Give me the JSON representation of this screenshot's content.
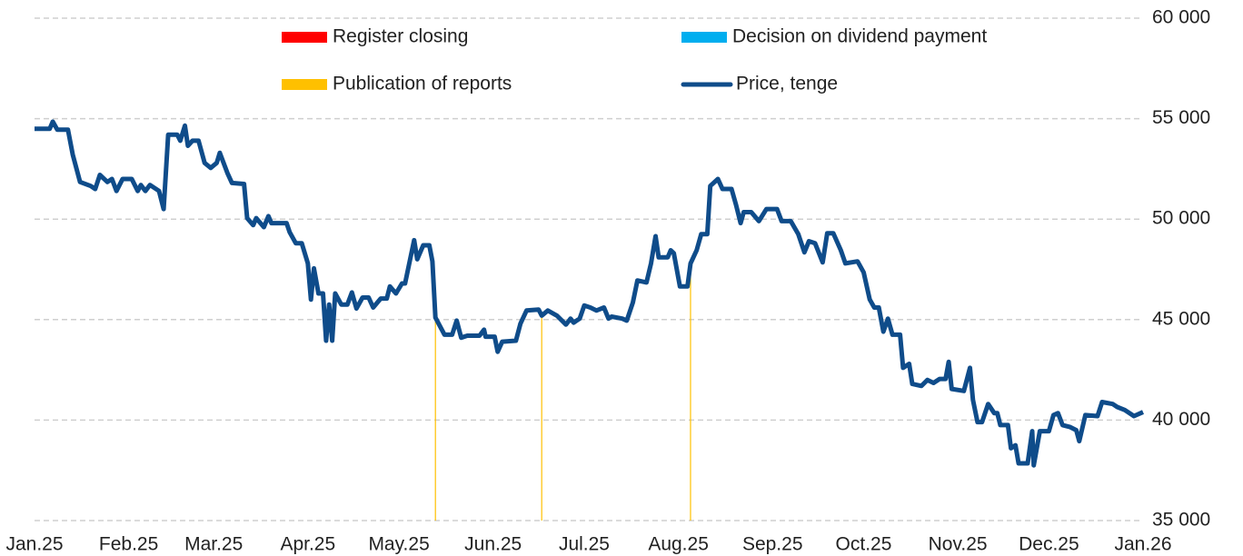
{
  "chart_data": {
    "type": "line",
    "xlim": [
      0,
      365
    ],
    "xticks": [
      {
        "value": 0,
        "label": "Jan.25"
      },
      {
        "value": 31,
        "label": "Feb.25"
      },
      {
        "value": 59,
        "label": "Mar.25"
      },
      {
        "value": 90,
        "label": "Apr.25"
      },
      {
        "value": 120,
        "label": "May.25"
      },
      {
        "value": 151,
        "label": "Jun.25"
      },
      {
        "value": 181,
        "label": "Jul.25"
      },
      {
        "value": 212,
        "label": "Aug.25"
      },
      {
        "value": 243,
        "label": "Sep.25"
      },
      {
        "value": 273,
        "label": "Oct.25"
      },
      {
        "value": 304,
        "label": "Nov.25"
      },
      {
        "value": 334,
        "label": "Dec.25"
      },
      {
        "value": 365,
        "label": "Jan.26"
      }
    ],
    "ylim": [
      35000,
      60000
    ],
    "yticks": [
      {
        "value": 35000,
        "label": "35 000"
      },
      {
        "value": 40000,
        "label": "40 000"
      },
      {
        "value": 45000,
        "label": "45 000"
      },
      {
        "value": 50000,
        "label": "50 000"
      },
      {
        "value": 55000,
        "label": "55 000"
      },
      {
        "value": 60000,
        "label": "60 000"
      }
    ],
    "grid": true,
    "events": [
      {
        "name": "Register closing",
        "color": "#ff0000",
        "x": []
      },
      {
        "name": "Decision on dividend payment",
        "color": "#00aeef",
        "x": []
      },
      {
        "name": "Publication of reports",
        "color": "#ffc000",
        "x": [
          132,
          167,
          216
        ]
      }
    ],
    "series": [
      {
        "name": "Price, tenge",
        "color": "#0f4c8a",
        "x": [
          0,
          5,
          6,
          7.5,
          11,
          12.6,
          15,
          18.5,
          20,
          21.5,
          24,
          25.5,
          27,
          29,
          32,
          34,
          35,
          36.5,
          38,
          41,
          42.5,
          44,
          47,
          48,
          49.5,
          50.5,
          52,
          54,
          56,
          58,
          60,
          61,
          63.5,
          65,
          69,
          70,
          72,
          73,
          75.5,
          77,
          78,
          83,
          84,
          86,
          88,
          90,
          91,
          92,
          93.5,
          95,
          96,
          97,
          98,
          99,
          101,
          103,
          104.5,
          106,
          108,
          110,
          111.5,
          114,
          116,
          117,
          119,
          121,
          122,
          125,
          126,
          128,
          130,
          131,
          132,
          135,
          137.5,
          139,
          140.5,
          142.5,
          146.5,
          148,
          148.5,
          151.5,
          152.5,
          154,
          158.5,
          160,
          162,
          166,
          167,
          169,
          172,
          175,
          176.5,
          177.5,
          179.5,
          181,
          183,
          185,
          187.5,
          189,
          190,
          193.5,
          195,
          197,
          198.5,
          201.5,
          203,
          204.5,
          205.5,
          208.5,
          209.5,
          210.5,
          212.5,
          215,
          216,
          218,
          219.5,
          221.5,
          222.5,
          225,
          226.5,
          229.5,
          231,
          232.5,
          233.5,
          236,
          238.5,
          241,
          244.5,
          246,
          249,
          251.5,
          253.5,
          255,
          257,
          259.5,
          261,
          263,
          265.5,
          267,
          271,
          273,
          275,
          276.5,
          278,
          279.5,
          281,
          282.5,
          285,
          286,
          288,
          289,
          292,
          294,
          296,
          298,
          300,
          301,
          302,
          306,
          308,
          309,
          310.5,
          312,
          314,
          316,
          317,
          318,
          320.5,
          321.5,
          323,
          324,
          327,
          328.5,
          329,
          331,
          334,
          335.5,
          337,
          338.5,
          341,
          343,
          344,
          346,
          350,
          351.5,
          355,
          356.5,
          359,
          362,
          365
        ],
        "values": [
          54500,
          54500,
          54850,
          54450,
          54450,
          53200,
          51850,
          51650,
          51500,
          52200,
          51850,
          52000,
          51400,
          52000,
          52000,
          51400,
          51700,
          51400,
          51700,
          51400,
          50500,
          54200,
          54200,
          53900,
          54650,
          53650,
          53900,
          53900,
          52800,
          52550,
          52800,
          53300,
          52300,
          51800,
          51750,
          50050,
          49700,
          50050,
          49600,
          50150,
          49800,
          49800,
          49350,
          48800,
          48800,
          47800,
          46000,
          47550,
          46300,
          46300,
          43950,
          45750,
          43950,
          46300,
          45750,
          45750,
          46350,
          45550,
          46100,
          46100,
          45600,
          46050,
          46050,
          46650,
          46300,
          46800,
          46800,
          48950,
          48000,
          48700,
          48700,
          47900,
          45100,
          44250,
          44250,
          44950,
          44100,
          44200,
          44200,
          44500,
          44150,
          44150,
          43400,
          43900,
          43950,
          44800,
          45450,
          45500,
          45200,
          45450,
          45200,
          44750,
          45050,
          44850,
          45050,
          45700,
          45600,
          45450,
          45600,
          45050,
          45150,
          45050,
          44950,
          45850,
          46950,
          46850,
          47800,
          49150,
          48100,
          48100,
          48450,
          48300,
          46650,
          46650,
          47800,
          48450,
          49250,
          49250,
          51650,
          52000,
          51500,
          51500,
          50700,
          49800,
          50350,
          50350,
          49900,
          50500,
          50500,
          49900,
          49900,
          49250,
          48350,
          48900,
          48800,
          47850,
          49300,
          49300,
          48450,
          47800,
          47900,
          47350,
          46000,
          45600,
          45600,
          44400,
          45050,
          44250,
          44250,
          42600,
          42800,
          41800,
          41700,
          42000,
          41850,
          42050,
          42050,
          42900,
          41550,
          41450,
          42600,
          41000,
          39900,
          39900,
          40800,
          40350,
          40350,
          39750,
          39750,
          38600,
          38750,
          37850,
          37850,
          39450,
          37750,
          39450,
          39450,
          40250,
          40350,
          39750,
          39650,
          39500,
          38950,
          40250,
          40200,
          40900,
          40800,
          40650,
          40500,
          40200,
          40400
        ]
      }
    ]
  }
}
